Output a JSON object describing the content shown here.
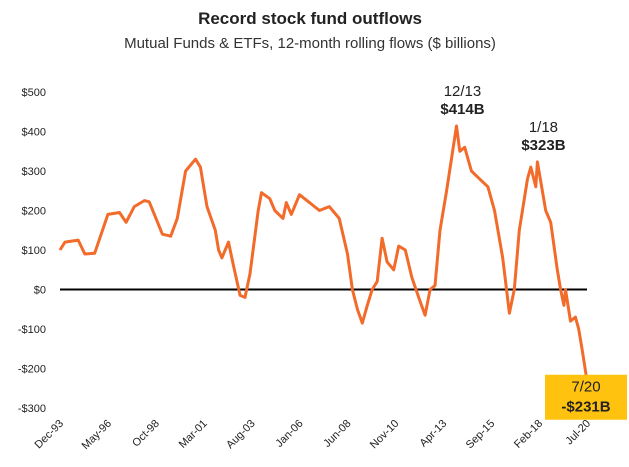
{
  "chart_data": {
    "type": "line",
    "title": "Record stock fund outflows",
    "subtitle": "Mutual Funds & ETFs, 12-month rolling flows ($ billions)",
    "x": [
      "Dec-93",
      "Mar-94",
      "Nov-94",
      "Mar-95",
      "Sep-95",
      "May-96",
      "Dec-96",
      "Apr-97",
      "Sep-97",
      "Mar-98",
      "Jun-98",
      "Feb-99",
      "Jul-99",
      "Nov-99",
      "Apr-00",
      "Oct-00",
      "Jan-01",
      "May-01",
      "Oct-01",
      "Dec-01",
      "Feb-02",
      "Jun-02",
      "Sep-02",
      "Jan-03",
      "Apr-03",
      "Jul-03",
      "Dec-03",
      "Feb-04",
      "Jul-04",
      "Oct-04",
      "Mar-05",
      "May-05",
      "Aug-05",
      "Jan-06",
      "Jul-06",
      "Jan-07",
      "Jul-07",
      "Jan-08",
      "Jun-08",
      "Sep-08",
      "Dec-08",
      "Mar-09",
      "Jun-09",
      "Sep-09",
      "Dec-09",
      "Mar-10",
      "Jun-10",
      "Oct-10",
      "Jan-11",
      "May-11",
      "Sep-11",
      "Feb-12",
      "May-12",
      "Aug-12",
      "Nov-12",
      "Feb-13",
      "Jun-13",
      "Dec-13",
      "Feb-14",
      "May-14",
      "Sep-14",
      "Feb-15",
      "Jul-15",
      "Nov-15",
      "Apr-16",
      "Aug-16",
      "Nov-16",
      "Feb-17",
      "Jul-17",
      "Sep-17",
      "Dec-17",
      "Jan-18",
      "Jun-18",
      "Sep-18",
      "Jan-19",
      "Mar-19",
      "May-19",
      "Jun-19",
      "Sep-19",
      "Dec-19",
      "Feb-20",
      "Apr-20",
      "Jul-20"
    ],
    "series": [
      {
        "name": "12-month rolling flows",
        "color": "#f26b2a",
        "values": [
          100,
          120,
          125,
          90,
          92,
          190,
          195,
          170,
          210,
          225,
          222,
          140,
          135,
          180,
          300,
          330,
          310,
          210,
          150,
          100,
          80,
          120,
          60,
          -15,
          -20,
          40,
          200,
          245,
          230,
          200,
          180,
          220,
          190,
          240,
          220,
          200,
          210,
          180,
          90,
          0,
          -50,
          -85,
          -40,
          0,
          20,
          130,
          70,
          50,
          110,
          100,
          30,
          -30,
          -65,
          0,
          10,
          150,
          250,
          414,
          350,
          360,
          300,
          280,
          260,
          200,
          80,
          -60,
          0,
          150,
          280,
          310,
          260,
          323,
          200,
          170,
          50,
          0,
          -40,
          0,
          -80,
          -70,
          -100,
          -150,
          -231
        ]
      }
    ],
    "xlim": [
      "Dec-93",
      "Jul-20"
    ],
    "xticks": [
      "Dec-93",
      "May-96",
      "Oct-98",
      "Mar-01",
      "Aug-03",
      "Jan-06",
      "Jun-08",
      "Nov-10",
      "Apr-13",
      "Sep-15",
      "Feb-18",
      "Jul-20"
    ],
    "ylim": [
      -300,
      500
    ],
    "yticks": [
      {
        "value": 500,
        "label": "$500"
      },
      {
        "value": 400,
        "label": "$400"
      },
      {
        "value": 300,
        "label": "$300"
      },
      {
        "value": 200,
        "label": "$200"
      },
      {
        "value": 100,
        "label": "$100"
      },
      {
        "value": 0,
        "label": "$0"
      },
      {
        "value": -100,
        "label": "-$100"
      },
      {
        "value": -200,
        "label": "-$200"
      },
      {
        "value": -300,
        "label": "-$300"
      }
    ],
    "grid": false,
    "annotations": [
      {
        "date": "12/13",
        "value": 414,
        "label": "$414B"
      },
      {
        "date": "1/18",
        "value": 323,
        "label": "$323B"
      },
      {
        "date": "7/20",
        "value": -231,
        "label": "-$231B",
        "highlight": "#ffc20e"
      }
    ]
  }
}
